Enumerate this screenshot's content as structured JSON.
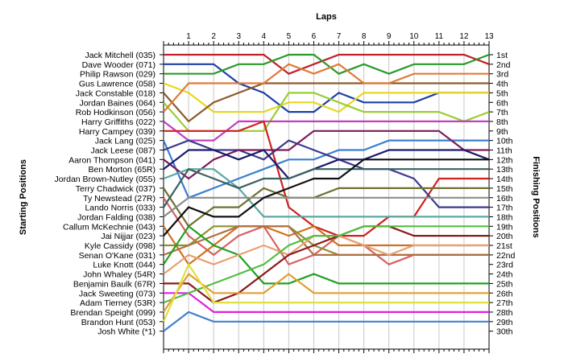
{
  "chart_data": {
    "type": "line",
    "title": "",
    "xlabel": "Laps",
    "ylabel_left": "Starting Positions",
    "ylabel_right": "Finishing Positions",
    "laps": [
      0,
      1,
      2,
      3,
      4,
      5,
      6,
      7,
      8,
      9,
      10,
      11,
      12,
      13
    ],
    "lap_tick_labels": [
      "1",
      "2",
      "3",
      "4",
      "5",
      "6",
      "7",
      "8",
      "9",
      "10",
      "11",
      "12",
      "13"
    ],
    "finishing_labels": [
      "1st",
      "2nd",
      "3rd",
      "4th",
      "5th",
      "6th",
      "7th",
      "8th",
      "9th",
      "10th",
      "11th",
      "12th",
      "13th",
      "14th",
      "15th",
      "16th",
      "17th",
      "18th",
      "19th",
      "20th",
      "21st",
      "22nd",
      "23rd",
      "24th",
      "25th",
      "26th",
      "27th",
      "28th",
      "29th",
      "30th"
    ],
    "drivers": [
      "Jack Mitchell (035)",
      "Dave Wooder (071)",
      "Philip Rawson (029)",
      "Gus Lawrence (058)",
      "Jack Constable (018)",
      "Jordan Baines (064)",
      "Rob Hodkinson (056)",
      "Harry Griffiths (022)",
      "Harry Campey (039)",
      "Jack Lang (025)",
      "Jack Leese (087)",
      "Aaron Thompson (041)",
      "Ben Morton (65R)",
      "Jordan Brown-Nutley (055)",
      "Terry Chadwick (037)",
      "Ty Newstead (27R)",
      "Lando Norris (033)",
      "Jordan Falding (038)",
      "Callum McKechnie (043)",
      "Jai Nijjar (023)",
      "Kyle Cassidy (098)",
      "Senan O'Kane (031)",
      "Luke Knott (044)",
      "John Whaley (54R)",
      "Benjamin Baulk (67R)",
      "Jack Sweeting (073)",
      "Adam Tierney (53R)",
      "Brendan Speight (099)",
      "Brandon Hunt (053)",
      "Josh White (*1)"
    ],
    "series": [
      {
        "color": "#c0202a",
        "values": [
          1,
          1,
          1,
          1,
          1,
          3,
          2,
          1,
          1,
          1,
          1,
          1,
          1,
          2
        ]
      },
      {
        "color": "#1f3fa8",
        "values": [
          2,
          2,
          2,
          4,
          5,
          7,
          7,
          5,
          6,
          6,
          6,
          5,
          5,
          5
        ]
      },
      {
        "color": "#2a9a2a",
        "values": [
          3,
          3,
          3,
          2,
          2,
          1,
          1,
          3,
          2,
          3,
          2,
          2,
          2,
          1
        ]
      },
      {
        "color": "#e6d820",
        "values": [
          4,
          5,
          7,
          7,
          7,
          6,
          6,
          7,
          5,
          5,
          5,
          5,
          5,
          5
        ]
      },
      {
        "color": "#8b5a2b",
        "values": [
          5,
          8,
          6,
          5,
          4,
          4,
          4,
          4,
          4,
          4,
          4,
          4,
          4,
          4
        ]
      },
      {
        "color": "#9acd32",
        "values": [
          6,
          9,
          9,
          9,
          9,
          5,
          5,
          6,
          7,
          7,
          7,
          7,
          8,
          7
        ]
      },
      {
        "color": "#e07b39",
        "values": [
          7,
          4,
          4,
          4,
          4,
          2,
          3,
          2,
          4,
          4,
          3,
          3,
          3,
          3
        ]
      },
      {
        "color": "#c040c0",
        "values": [
          8,
          10,
          10,
          8,
          8,
          8,
          8,
          8,
          8,
          8,
          8,
          8,
          8,
          8
        ]
      },
      {
        "color": "#d02020",
        "values": [
          9,
          9,
          9,
          9,
          8,
          17,
          19,
          20,
          20,
          18,
          18,
          14,
          14,
          14
        ]
      },
      {
        "color": "#3a7fd0",
        "values": [
          10,
          16,
          15,
          14,
          13,
          12,
          12,
          11,
          11,
          10,
          10,
          10,
          10,
          10
        ]
      },
      {
        "color": "#3a3a90",
        "values": [
          11,
          10,
          11,
          11,
          12,
          10,
          11,
          12,
          13,
          13,
          14,
          17,
          17,
          17
        ]
      },
      {
        "color": "#7a1a5a",
        "values": [
          12,
          14,
          12,
          11,
          11,
          11,
          9,
          9,
          9,
          9,
          9,
          9,
          11,
          11
        ]
      },
      {
        "color": "#1a1a6a",
        "values": [
          13,
          11,
          11,
          12,
          11,
          14,
          13,
          12,
          12,
          11,
          11,
          11,
          11,
          12
        ]
      },
      {
        "color": "#5aa8a0",
        "values": [
          14,
          13,
          13,
          15,
          18,
          18,
          18,
          18,
          18,
          18,
          18,
          18,
          18,
          18
        ]
      },
      {
        "color": "#707030",
        "values": [
          15,
          19,
          17,
          17,
          15,
          16,
          16,
          15,
          15,
          15,
          15,
          15,
          15,
          15
        ]
      },
      {
        "color": "#d86060",
        "values": [
          16,
          20,
          22,
          20,
          19,
          23,
          22,
          20,
          21,
          23,
          22,
          22,
          22,
          22
        ]
      },
      {
        "color": "#3a6060",
        "values": [
          17,
          13,
          14,
          15,
          14,
          14,
          13,
          13,
          13,
          13,
          13,
          13,
          13,
          13
        ]
      },
      {
        "color": "#8c8c8c",
        "values": [
          18,
          16,
          16,
          16,
          16,
          16,
          16,
          16,
          16,
          16,
          16,
          16,
          16,
          16
        ]
      },
      {
        "color": "#d07020",
        "values": [
          19,
          23,
          21,
          19,
          19,
          20,
          19,
          21,
          21,
          21,
          21,
          21,
          21,
          21
        ]
      },
      {
        "color": "#101010",
        "values": [
          20,
          17,
          18,
          18,
          16,
          15,
          14,
          14,
          12,
          12,
          12,
          12,
          12,
          12
        ]
      },
      {
        "color": "#909030",
        "values": [
          21,
          21,
          19,
          19,
          19,
          19,
          21,
          22,
          22,
          22,
          22,
          22,
          22,
          22
        ]
      },
      {
        "color": "#b07040",
        "values": [
          22,
          21,
          20,
          19,
          19,
          19,
          22,
          22,
          22,
          22,
          22,
          22,
          22,
          22
        ]
      },
      {
        "color": "#20a020",
        "values": [
          23,
          19,
          21,
          22,
          25,
          25,
          24,
          25,
          25,
          25,
          25,
          25,
          25,
          25
        ]
      },
      {
        "color": "#e8a070",
        "values": [
          24,
          22,
          23,
          22,
          21,
          22,
          20,
          20,
          21,
          22,
          21,
          21,
          21,
          21
        ]
      },
      {
        "color": "#8a1a1a",
        "values": [
          25,
          25,
          27,
          26,
          24,
          22,
          21,
          20,
          19,
          19,
          20,
          20,
          20,
          20
        ]
      },
      {
        "color": "#e020e0",
        "values": [
          26,
          26,
          28,
          28,
          28,
          28,
          28,
          28,
          28,
          28,
          28,
          28,
          28,
          28
        ]
      },
      {
        "color": "#50c040",
        "values": [
          27,
          26,
          25,
          24,
          23,
          21,
          20,
          20,
          19,
          19,
          19,
          19,
          19,
          19
        ]
      },
      {
        "color": "#e0a030",
        "values": [
          28,
          24,
          26,
          26,
          26,
          24,
          26,
          26,
          26,
          26,
          26,
          26,
          26,
          26
        ]
      },
      {
        "color": "#e0e040",
        "values": [
          29,
          23,
          27,
          27,
          27,
          27,
          27,
          27,
          27,
          27,
          27,
          27,
          27,
          27
        ]
      },
      {
        "color": "#4080d0",
        "values": [
          30,
          28,
          29,
          29,
          29,
          29,
          29,
          29,
          29,
          29,
          29,
          29,
          29,
          29
        ]
      }
    ],
    "grid": true,
    "legend": "none"
  }
}
